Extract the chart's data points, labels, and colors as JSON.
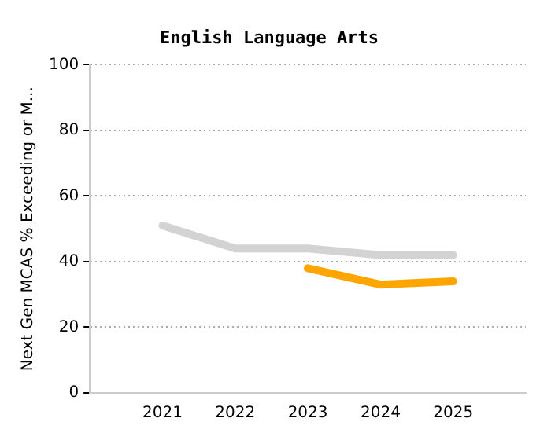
{
  "chart_data": {
    "type": "line",
    "title": "English Language Arts",
    "ylabel": "Next Gen MCAS % Exceeding or M...",
    "x": [
      2021,
      2022,
      2023,
      2024,
      2025
    ],
    "xlim": [
      2020,
      2026
    ],
    "xticks": [
      2021,
      2022,
      2023,
      2024,
      2025
    ],
    "ylim": [
      0,
      100
    ],
    "yticks": [
      0,
      20,
      40,
      60,
      80,
      100
    ],
    "grid": "y",
    "marker": "none",
    "line_style": "solid",
    "series": [
      {
        "color": "#d3d3d3",
        "values": [
          51,
          44,
          44,
          42,
          42
        ]
      },
      {
        "color": "#ffa500",
        "values": [
          null,
          null,
          38,
          33,
          34
        ]
      }
    ]
  }
}
